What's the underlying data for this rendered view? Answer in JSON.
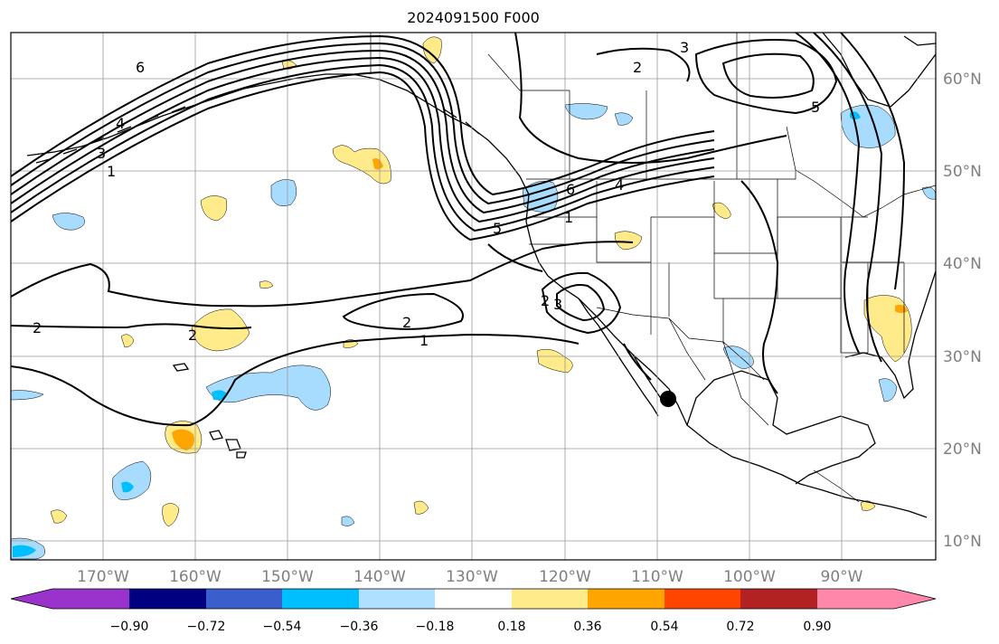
{
  "title": "2024091500 F000",
  "lon_ticks": [
    "170°W",
    "160°W",
    "150°W",
    "140°W",
    "130°W",
    "120°W",
    "110°W",
    "100°W",
    "90°W"
  ],
  "lat_ticks": [
    "60°N",
    "50°N",
    "40°N",
    "30°N",
    "20°N",
    "10°N"
  ],
  "contour_labels": [
    "1",
    "2",
    "2",
    "2",
    "3",
    "4",
    "5",
    "6",
    "1",
    "2",
    "3",
    "1",
    "2",
    "3",
    "4",
    "5",
    "6"
  ],
  "colorbar": {
    "ticks": [
      "−0.90",
      "−0.72",
      "−0.54",
      "−0.36",
      "−0.18",
      "0.18",
      "0.36",
      "0.54",
      "0.72",
      "0.90"
    ],
    "colors": [
      "#9933cc",
      "#000080",
      "#3a5fcd",
      "#00bfff",
      "#b0e0ff",
      "#ffffff",
      "#ffeb8a",
      "#ffa500",
      "#ff4500",
      "#b22222",
      "#ff88aa"
    ]
  },
  "colors": {
    "grid": "#999999",
    "coast": "#000000",
    "contour": "#000000",
    "light_blue": "#a8dcff",
    "blue": "#00bfff",
    "yellow": "#ffeb8a",
    "orange": "#ffa500"
  },
  "marker": "black-dot"
}
